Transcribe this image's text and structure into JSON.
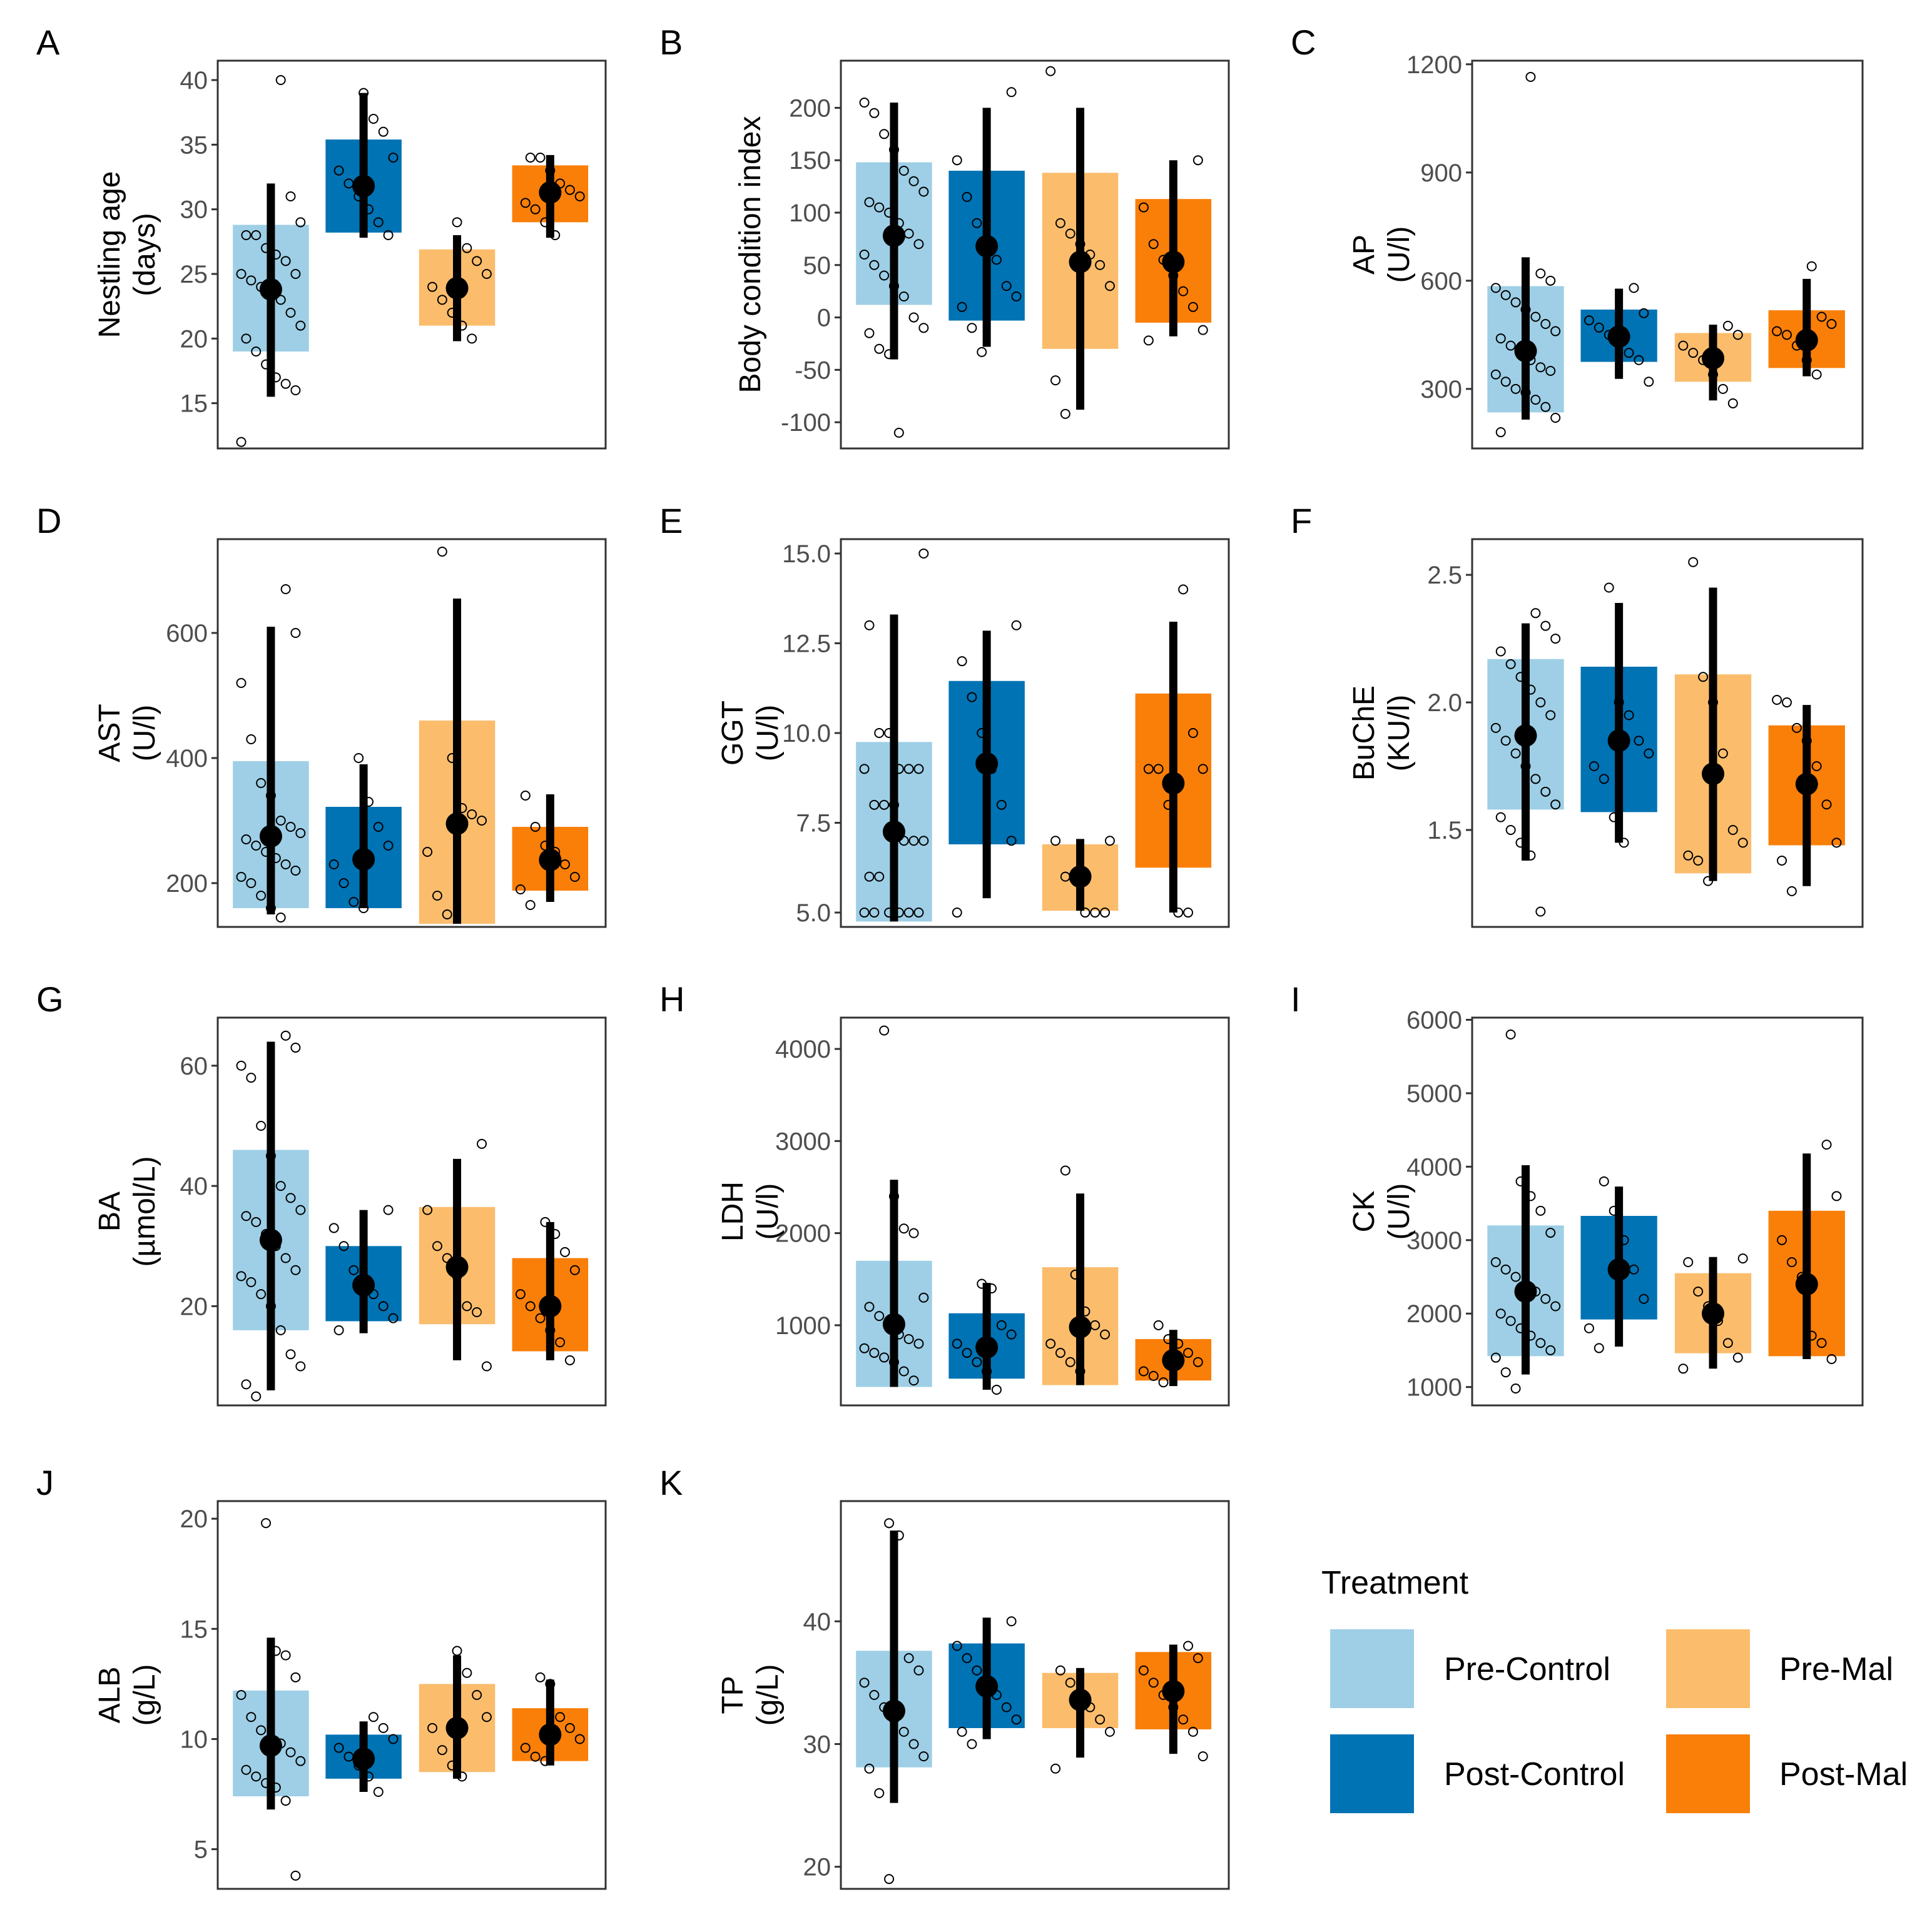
{
  "chart_data": [
    {
      "letter": "A",
      "type": "box",
      "ylabel": [
        "Nestling age",
        "(days)"
      ],
      "ylim": [
        11.5,
        41.5
      ],
      "ticks": [
        15,
        20,
        25,
        30,
        35,
        40
      ],
      "groups": [
        {
          "q1": 19,
          "q3": 28.8,
          "low": 15.5,
          "high": 32,
          "mean": 23.8,
          "pts": [
            12,
            16,
            16.5,
            17,
            18,
            19,
            20,
            21,
            22,
            23,
            23.5,
            24,
            24.5,
            25,
            25,
            26,
            26.5,
            27,
            28,
            28,
            29,
            31,
            40
          ]
        },
        {
          "q1": 28.2,
          "q3": 35.4,
          "low": 27.8,
          "high": 39,
          "mean": 31.8,
          "pts": [
            28,
            29,
            30,
            31,
            32,
            33,
            34,
            36,
            37,
            39
          ]
        },
        {
          "q1": 21,
          "q3": 26.9,
          "low": 19.8,
          "high": 28,
          "mean": 23.9,
          "pts": [
            20,
            21,
            22,
            23,
            24,
            25,
            26,
            27,
            29
          ]
        },
        {
          "q1": 29,
          "q3": 33.4,
          "low": 27.8,
          "high": 34.2,
          "mean": 31.3,
          "pts": [
            28,
            29,
            30,
            30.5,
            31,
            31.5,
            32,
            33,
            34,
            34
          ]
        }
      ]
    },
    {
      "letter": "B",
      "type": "box",
      "ylabel": [
        "Body condition index"
      ],
      "ylim": [
        -125,
        245
      ],
      "ticks": [
        -100,
        -50,
        0,
        50,
        100,
        150,
        200
      ],
      "tickLabels": [
        "-100",
        "-50",
        "0",
        "50",
        "100",
        "150",
        "200"
      ],
      "groups": [
        {
          "q1": 12,
          "q3": 148,
          "low": -40,
          "high": 205,
          "mean": 78,
          "pts": [
            -110,
            -35,
            -30,
            -15,
            -10,
            0,
            20,
            30,
            40,
            50,
            60,
            70,
            80,
            90,
            100,
            105,
            110,
            120,
            130,
            140,
            160,
            175,
            195,
            205
          ]
        },
        {
          "q1": -3,
          "q3": 140,
          "low": -28,
          "high": 200,
          "mean": 68,
          "pts": [
            -33,
            -10,
            10,
            20,
            30,
            55,
            75,
            90,
            115,
            150,
            215
          ]
        },
        {
          "q1": -30,
          "q3": 138,
          "low": -88,
          "high": 200,
          "mean": 53,
          "pts": [
            -92,
            -60,
            30,
            50,
            60,
            70,
            80,
            90,
            235
          ]
        },
        {
          "q1": -5,
          "q3": 113,
          "low": -18,
          "high": 150,
          "mean": 53,
          "pts": [
            -22,
            -12,
            10,
            25,
            40,
            55,
            70,
            105,
            150
          ]
        }
      ]
    },
    {
      "letter": "C",
      "type": "box",
      "ylabel": [
        "AP",
        "(U/l)"
      ],
      "ylim": [
        135,
        1210
      ],
      "ticks": [
        300,
        600,
        900,
        1200
      ],
      "groups": [
        {
          "q1": 235,
          "q3": 585,
          "low": 215,
          "high": 665,
          "mean": 405,
          "pts": [
            180,
            220,
            250,
            270,
            290,
            300,
            320,
            340,
            350,
            360,
            380,
            400,
            420,
            440,
            460,
            480,
            500,
            520,
            540,
            560,
            580,
            600,
            620,
            1165
          ]
        },
        {
          "q1": 375,
          "q3": 520,
          "low": 328,
          "high": 578,
          "mean": 445,
          "pts": [
            320,
            380,
            400,
            430,
            450,
            470,
            490,
            510,
            580
          ]
        },
        {
          "q1": 320,
          "q3": 455,
          "low": 268,
          "high": 478,
          "mean": 385,
          "pts": [
            260,
            300,
            340,
            380,
            400,
            420,
            450,
            475
          ]
        },
        {
          "q1": 358,
          "q3": 518,
          "low": 335,
          "high": 605,
          "mean": 435,
          "pts": [
            340,
            380,
            420,
            450,
            460,
            480,
            500,
            640
          ]
        }
      ]
    },
    {
      "letter": "D",
      "type": "box",
      "ylabel": [
        "AST",
        "(U/l)"
      ],
      "ylim": [
        130,
        750
      ],
      "ticks": [
        200,
        400,
        600
      ],
      "groups": [
        {
          "q1": 160,
          "q3": 395,
          "low": 150,
          "high": 610,
          "mean": 275,
          "pts": [
            145,
            160,
            180,
            200,
            210,
            220,
            230,
            240,
            250,
            260,
            270,
            280,
            290,
            300,
            340,
            360,
            430,
            520,
            600,
            670
          ]
        },
        {
          "q1": 160,
          "q3": 322,
          "low": 160,
          "high": 390,
          "mean": 238,
          "pts": [
            160,
            170,
            200,
            230,
            260,
            290,
            330,
            400
          ]
        },
        {
          "q1": 135,
          "q3": 460,
          "low": 135,
          "high": 655,
          "mean": 295,
          "pts": [
            150,
            180,
            250,
            300,
            310,
            320,
            400,
            730
          ]
        },
        {
          "q1": 188,
          "q3": 290,
          "low": 170,
          "high": 342,
          "mean": 237,
          "pts": [
            165,
            190,
            210,
            230,
            250,
            260,
            290,
            340
          ]
        }
      ]
    },
    {
      "letter": "E",
      "type": "box",
      "ylabel": [
        "GGT",
        "(U/l)"
      ],
      "ylim": [
        4.6,
        15.4
      ],
      "ticks": [
        5,
        7.5,
        10,
        12.5,
        15
      ],
      "tickLabels": [
        "5.0",
        "7.5",
        "10.0",
        "12.5",
        "15.0"
      ],
      "groups": [
        {
          "q1": 4.75,
          "q3": 9.75,
          "low": 4.75,
          "high": 13.3,
          "mean": 7.25,
          "pts": [
            5,
            5,
            5,
            5,
            5,
            5,
            6,
            6,
            7,
            7,
            7,
            8,
            8,
            8,
            9,
            9,
            9,
            9,
            10,
            10,
            13,
            15
          ]
        },
        {
          "q1": 6.9,
          "q3": 11.45,
          "low": 5.4,
          "high": 12.85,
          "mean": 9.15,
          "pts": [
            5,
            7,
            8,
            9,
            10,
            11,
            12,
            13
          ]
        },
        {
          "q1": 5.05,
          "q3": 6.9,
          "low": 5.05,
          "high": 7.05,
          "mean": 6,
          "pts": [
            5,
            5,
            5,
            6,
            6,
            7,
            7
          ]
        },
        {
          "q1": 6.25,
          "q3": 11.1,
          "low": 5,
          "high": 13.1,
          "mean": 8.6,
          "pts": [
            5,
            5,
            8,
            9,
            9,
            9,
            10,
            14
          ]
        }
      ]
    },
    {
      "letter": "F",
      "type": "box",
      "ylabel": [
        "BuChE",
        "(KU/l)"
      ],
      "ylim": [
        1.12,
        2.64
      ],
      "ticks": [
        1.5,
        2,
        2.5
      ],
      "tickLabels": [
        "1.5",
        "2.0",
        "2.5"
      ],
      "groups": [
        {
          "q1": 1.58,
          "q3": 2.17,
          "low": 1.38,
          "high": 2.31,
          "mean": 1.87,
          "pts": [
            1.18,
            1.4,
            1.45,
            1.5,
            1.55,
            1.6,
            1.65,
            1.7,
            1.75,
            1.8,
            1.85,
            1.9,
            1.95,
            2,
            2.05,
            2.1,
            2.15,
            2.2,
            2.25,
            2.3,
            2.35
          ]
        },
        {
          "q1": 1.57,
          "q3": 2.14,
          "low": 1.45,
          "high": 2.39,
          "mean": 1.85,
          "pts": [
            1.45,
            1.55,
            1.7,
            1.75,
            1.8,
            1.85,
            1.95,
            2,
            2.45
          ]
        },
        {
          "q1": 1.33,
          "q3": 2.11,
          "low": 1.3,
          "high": 2.45,
          "mean": 1.72,
          "pts": [
            1.3,
            1.38,
            1.4,
            1.45,
            1.5,
            1.8,
            2,
            2.1,
            2.55
          ]
        },
        {
          "q1": 1.44,
          "q3": 1.91,
          "low": 1.28,
          "high": 1.99,
          "mean": 1.68,
          "pts": [
            1.26,
            1.38,
            1.45,
            1.6,
            1.75,
            1.85,
            1.9,
            2,
            2.01
          ]
        }
      ]
    },
    {
      "letter": "G",
      "type": "box",
      "ylabel": [
        "BA",
        "(µmol/L)"
      ],
      "ylim": [
        3.5,
        68
      ],
      "ticks": [
        20,
        40,
        60
      ],
      "groups": [
        {
          "q1": 16,
          "q3": 46,
          "low": 6,
          "high": 64,
          "mean": 31,
          "pts": [
            5,
            7,
            10,
            12,
            16,
            20,
            22,
            24,
            25,
            26,
            28,
            30,
            32,
            34,
            35,
            36,
            38,
            40,
            45,
            50,
            58,
            60,
            63,
            65
          ]
        },
        {
          "q1": 17.5,
          "q3": 30,
          "low": 15.5,
          "high": 36,
          "mean": 23.5,
          "pts": [
            16,
            18,
            20,
            22,
            24,
            26,
            30,
            33,
            36
          ]
        },
        {
          "q1": 17,
          "q3": 36.5,
          "low": 11,
          "high": 44.5,
          "mean": 26.5,
          "pts": [
            10,
            19,
            20,
            25,
            28,
            30,
            36,
            47
          ]
        },
        {
          "q1": 12.5,
          "q3": 28,
          "low": 11,
          "high": 34,
          "mean": 20,
          "pts": [
            11,
            14,
            16,
            18,
            20,
            22,
            26,
            29,
            32,
            34
          ]
        }
      ]
    },
    {
      "letter": "H",
      "type": "box",
      "ylabel": [
        "LDH",
        "(U/l)"
      ],
      "ylim": [
        130,
        4340
      ],
      "ticks": [
        1000,
        2000,
        3000,
        4000
      ],
      "groups": [
        {
          "q1": 330,
          "q3": 1700,
          "low": 330,
          "high": 2580,
          "mean": 1010,
          "pts": [
            400,
            500,
            600,
            650,
            700,
            750,
            800,
            850,
            900,
            1000,
            1100,
            1200,
            1300,
            2000,
            2050,
            2400,
            4200
          ]
        },
        {
          "q1": 420,
          "q3": 1130,
          "low": 300,
          "high": 1460,
          "mean": 760,
          "pts": [
            300,
            500,
            600,
            700,
            800,
            900,
            1000,
            1400,
            1450
          ]
        },
        {
          "q1": 350,
          "q3": 1630,
          "low": 350,
          "high": 2430,
          "mean": 980,
          "pts": [
            500,
            600,
            700,
            800,
            900,
            1000,
            1150,
            1550,
            2680
          ]
        },
        {
          "q1": 400,
          "q3": 850,
          "low": 340,
          "high": 950,
          "mean": 620,
          "pts": [
            380,
            450,
            500,
            600,
            700,
            800,
            850,
            1000
          ]
        }
      ]
    },
    {
      "letter": "I",
      "type": "box",
      "ylabel": [
        "CK",
        "(U/l)"
      ],
      "ylim": [
        750,
        6030
      ],
      "ticks": [
        1000,
        2000,
        3000,
        4000,
        5000,
        6000
      ],
      "groups": [
        {
          "q1": 1420,
          "q3": 3200,
          "low": 1170,
          "high": 4020,
          "mean": 2300,
          "pts": [
            980,
            1200,
            1400,
            1500,
            1600,
            1700,
            1800,
            1900,
            2000,
            2100,
            2200,
            2300,
            2400,
            2500,
            2600,
            2700,
            3100,
            3400,
            3600,
            3800,
            5800
          ]
        },
        {
          "q1": 1920,
          "q3": 3330,
          "low": 1550,
          "high": 3730,
          "mean": 2600,
          "pts": [
            1530,
            1800,
            2200,
            2600,
            3000,
            3400,
            3800
          ]
        },
        {
          "q1": 1460,
          "q3": 2550,
          "low": 1250,
          "high": 2770,
          "mean": 2000,
          "pts": [
            1250,
            1400,
            1600,
            1900,
            2100,
            2300,
            2700,
            2750
          ]
        },
        {
          "q1": 1420,
          "q3": 3400,
          "low": 1380,
          "high": 4180,
          "mean": 2400,
          "pts": [
            1380,
            1600,
            1700,
            2500,
            2700,
            3000,
            3600,
            4300
          ]
        }
      ]
    },
    {
      "letter": "J",
      "type": "box",
      "ylabel": [
        "ALB",
        "(g/L)"
      ],
      "ylim": [
        3.2,
        20.8
      ],
      "ticks": [
        5,
        10,
        15,
        20
      ],
      "groups": [
        {
          "q1": 7.4,
          "q3": 12.2,
          "low": 6.8,
          "high": 14.6,
          "mean": 9.7,
          "pts": [
            3.8,
            7.2,
            7.8,
            8,
            8.3,
            8.6,
            9,
            9.4,
            9.8,
            10,
            10.4,
            11,
            12,
            12.8,
            13.8,
            14,
            19.8
          ]
        },
        {
          "q1": 8.2,
          "q3": 10.2,
          "low": 7.6,
          "high": 10.8,
          "mean": 9.1,
          "pts": [
            7.6,
            8.3,
            8.8,
            9.2,
            9.6,
            10,
            10.5,
            11
          ]
        },
        {
          "q1": 8.5,
          "q3": 12.5,
          "low": 8.2,
          "high": 13.8,
          "mean": 10.5,
          "pts": [
            8.3,
            8.8,
            9.5,
            10.5,
            11,
            12,
            13,
            14
          ]
        },
        {
          "q1": 9,
          "q3": 11.4,
          "low": 8.8,
          "high": 12.7,
          "mean": 10.2,
          "pts": [
            9,
            9.2,
            9.6,
            10,
            10.5,
            11,
            12.5,
            12.8
          ]
        }
      ]
    },
    {
      "letter": "K",
      "type": "box",
      "ylabel": [
        "TP",
        "(g/L)"
      ],
      "ylim": [
        18.2,
        49.8
      ],
      "ticks": [
        20,
        30,
        40
      ],
      "groups": [
        {
          "q1": 28.1,
          "q3": 37.6,
          "low": 25.2,
          "high": 47.4,
          "mean": 32.7,
          "pts": [
            19,
            26,
            28,
            29,
            30,
            31,
            32,
            33,
            34,
            35,
            36,
            37,
            47,
            48
          ]
        },
        {
          "q1": 31.3,
          "q3": 38.2,
          "low": 30.4,
          "high": 40.3,
          "mean": 34.7,
          "pts": [
            30,
            31,
            32,
            33,
            34,
            35,
            36,
            37,
            38,
            40
          ]
        },
        {
          "q1": 31.3,
          "q3": 35.8,
          "low": 28.9,
          "high": 36.2,
          "mean": 33.6,
          "pts": [
            28,
            31,
            32,
            33,
            34,
            35,
            36
          ]
        },
        {
          "q1": 31.2,
          "q3": 37.5,
          "low": 29.2,
          "high": 38.1,
          "mean": 34.3,
          "pts": [
            29,
            31,
            32,
            33,
            34,
            35,
            36,
            37,
            38
          ]
        }
      ]
    }
  ],
  "legend": {
    "title": "Treatment",
    "items": [
      {
        "label": "Pre-Control",
        "color": "#9ecfe6"
      },
      {
        "label": "Pre-Mal",
        "color": "#fbbd6c"
      },
      {
        "label": "Post-Control",
        "color": "#0073b4"
      },
      {
        "label": "Post-Mal",
        "color": "#f97f09"
      }
    ]
  },
  "colors": {
    "groups": [
      "#9ecfe6",
      "#0073b4",
      "#fbbd6c",
      "#f97f09"
    ],
    "mean_marker": "#000000",
    "whisker": "#000000",
    "frame": "#333333"
  }
}
